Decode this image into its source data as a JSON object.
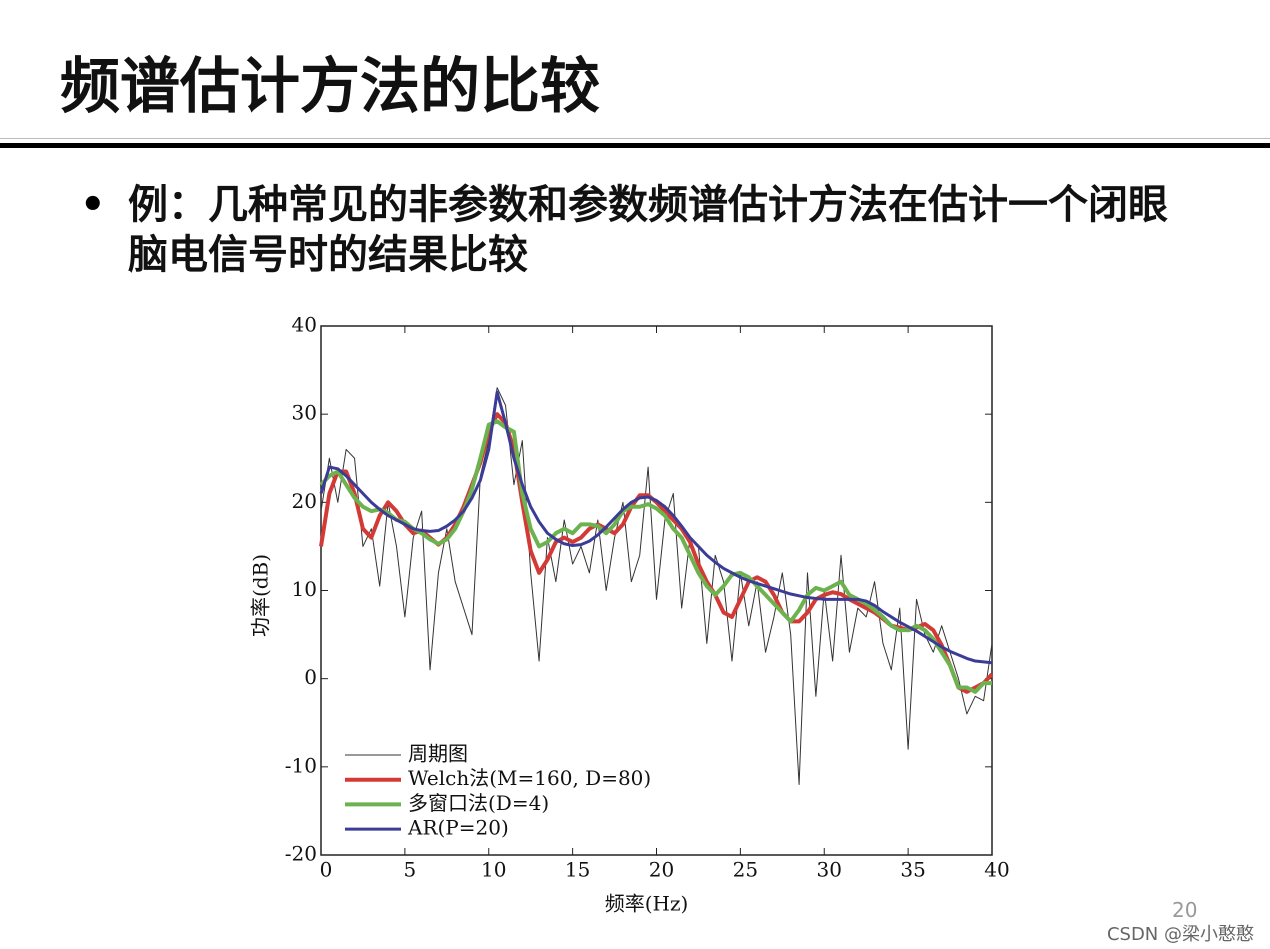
{
  "slide": {
    "title": "频谱估计方法的比较",
    "bullet": "例：几种常见的非参数和参数频谱估计方法在估计一个闭眼脑电信号时的结果比较",
    "page_number": "20",
    "watermark": "CSDN @梁小憨憨"
  },
  "chart_data": {
    "type": "line",
    "x_label": "频率(Hz)",
    "y_label": "功率(dB)",
    "x": [
      0,
      0.5,
      1,
      1.5,
      2,
      2.5,
      3,
      3.5,
      4,
      4.5,
      5,
      5.5,
      6,
      6.5,
      7,
      7.5,
      8,
      8.5,
      9,
      9.5,
      10,
      10.5,
      11,
      11.5,
      12,
      12.5,
      13,
      13.5,
      14,
      14.5,
      15,
      15.5,
      16,
      16.5,
      17,
      17.5,
      18,
      18.5,
      19,
      19.5,
      20,
      20.5,
      21,
      21.5,
      22,
      22.5,
      23,
      23.5,
      24,
      24.5,
      25,
      25.5,
      26,
      26.5,
      27,
      27.5,
      28,
      28.5,
      29,
      29.5,
      30,
      30.5,
      31,
      31.5,
      32,
      32.5,
      33,
      33.5,
      34,
      34.5,
      35,
      35.5,
      36,
      36.5,
      37,
      37.5,
      38,
      38.5,
      39,
      39.5,
      40
    ],
    "series": [
      {
        "name": "周期图",
        "color": "#333333",
        "width": 1,
        "values": [
          19,
          25,
          20,
          26,
          25,
          15,
          17,
          10.5,
          20,
          15,
          7,
          16,
          19,
          1,
          12,
          17,
          11,
          8,
          5,
          23,
          27,
          33,
          31,
          22,
          27,
          12,
          2,
          16,
          11,
          18,
          13,
          15,
          12,
          18,
          10,
          16,
          20,
          11,
          14,
          24,
          9,
          18,
          21,
          8,
          16,
          15,
          4,
          14,
          11,
          2,
          12,
          6,
          11,
          3,
          7,
          12,
          5,
          -12,
          12,
          -2,
          10,
          2,
          14,
          3,
          8,
          7,
          11,
          4,
          1,
          8,
          -8,
          9,
          5,
          3,
          6,
          3,
          0,
          -4,
          -2,
          -2.5,
          4
        ]
      },
      {
        "name": "Welch法(M=160, D=80)",
        "color": "#d43a35",
        "width": 4,
        "values": [
          15,
          21,
          23.5,
          23.5,
          21,
          17,
          16,
          18.5,
          20,
          19,
          17.5,
          16.5,
          16.8,
          16,
          15.2,
          16,
          17.5,
          19.5,
          22,
          24.5,
          28,
          30,
          29,
          26,
          20,
          14.5,
          12,
          13.5,
          15.5,
          16,
          15.5,
          16,
          17,
          17.5,
          17,
          16.5,
          17.5,
          19.5,
          20.8,
          20.8,
          20,
          19,
          18,
          17,
          15.5,
          13,
          11,
          9.5,
          7.5,
          7,
          9,
          11,
          11.5,
          11,
          9.5,
          7.5,
          6.5,
          6.5,
          7.5,
          9,
          9.5,
          9.8,
          9.6,
          9,
          8.5,
          8,
          7.5,
          6.8,
          6,
          5.8,
          5.5,
          5.8,
          6.2,
          5.5,
          3.8,
          1.5,
          -1,
          -1.5,
          -1,
          -0.5,
          0.5
        ]
      },
      {
        "name": "多窗口法(D=4)",
        "color": "#6cb34f",
        "width": 4,
        "values": [
          22,
          23,
          23.5,
          22,
          20.5,
          19.5,
          19,
          19.2,
          18.8,
          18,
          17.8,
          17,
          16.5,
          15.8,
          15.3,
          15.8,
          17,
          19,
          21.5,
          25,
          28.8,
          29.2,
          28.5,
          28,
          21,
          17,
          15,
          15.5,
          16.5,
          17,
          16.5,
          17.5,
          17.5,
          17.3,
          16.5,
          17.5,
          19,
          19.5,
          19.5,
          19.8,
          19.3,
          18.5,
          17,
          16,
          14,
          12,
          10.5,
          9.5,
          10.5,
          11.8,
          12,
          11.5,
          10.5,
          9.5,
          8.5,
          7.5,
          6.5,
          7.8,
          9.5,
          10.3,
          10,
          10.5,
          11,
          9.5,
          9,
          8.5,
          7.8,
          7,
          6,
          5.5,
          5.5,
          6,
          5.5,
          4.5,
          3,
          1.5,
          -1,
          -1,
          -1.5,
          -0.5,
          -0.5
        ]
      },
      {
        "name": "AR(P=20)",
        "color": "#3b3c96",
        "width": 3,
        "values": [
          21,
          24,
          23.8,
          23,
          22,
          21,
          20,
          19.2,
          18.5,
          18,
          17.5,
          17,
          16.8,
          16.7,
          16.8,
          17.3,
          18,
          19,
          20.5,
          22.5,
          26,
          32.5,
          29,
          25,
          22,
          19.5,
          17.8,
          16.5,
          15.8,
          15.3,
          15.1,
          15.2,
          15.6,
          16.3,
          17.2,
          18.2,
          19.2,
          20,
          20.5,
          20.6,
          20.2,
          19.5,
          18.5,
          17.3,
          16,
          15,
          14,
          13.2,
          12.5,
          12,
          11.5,
          11.1,
          10.8,
          10.5,
          10.2,
          9.9,
          9.6,
          9.4,
          9.2,
          9.1,
          9,
          9,
          9,
          9,
          9,
          8.8,
          8.3,
          7.6,
          7,
          6.4,
          5.9,
          5.4,
          4.8,
          4.2,
          3.6,
          3.1,
          2.7,
          2.3,
          2,
          1.9,
          1.8
        ]
      }
    ],
    "xlim": [
      0,
      40
    ],
    "xticks": [
      0,
      5,
      10,
      15,
      20,
      25,
      30,
      35,
      40
    ],
    "ylim": [
      -20,
      40
    ],
    "yticks": [
      -20,
      -10,
      0,
      10,
      20,
      30,
      40
    ],
    "legend": "lower left"
  }
}
